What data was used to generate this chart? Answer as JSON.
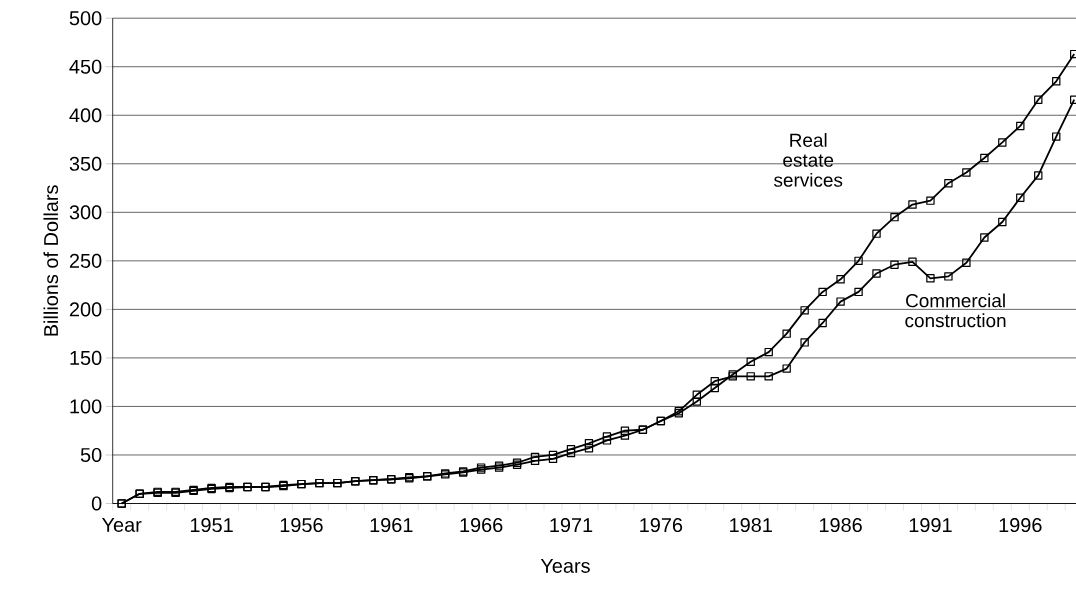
{
  "chart_data": {
    "type": "line",
    "xlabel": "Years",
    "ylabel": "Billions of Dollars",
    "categories": [
      "Year",
      null,
      null,
      null,
      null,
      "1951",
      null,
      null,
      null,
      null,
      "1956",
      null,
      null,
      null,
      null,
      "1961",
      null,
      null,
      null,
      null,
      "1966",
      null,
      null,
      null,
      null,
      "1971",
      null,
      null,
      null,
      null,
      "1976",
      null,
      null,
      null,
      null,
      "1981",
      null,
      null,
      null,
      null,
      "1986",
      null,
      null,
      null,
      null,
      "1991",
      null,
      null,
      null,
      null,
      "1996",
      null,
      null,
      null
    ],
    "series": [
      {
        "name": "Real estate services",
        "color": "#000000",
        "values": [
          0,
          10,
          11,
          11,
          13,
          15,
          16,
          17,
          17,
          18,
          20,
          21,
          21,
          23,
          24,
          25,
          26,
          28,
          30,
          32,
          35,
          37,
          40,
          44,
          46,
          52,
          57,
          65,
          70,
          76,
          85,
          93,
          105,
          119,
          133,
          146,
          156,
          175,
          199,
          218,
          231,
          250,
          278,
          295,
          308,
          312,
          330,
          341,
          356,
          372,
          389,
          416,
          435,
          463
        ]
      },
      {
        "name": "Commercial construction",
        "color": "#000000",
        "values": [
          0,
          10,
          12,
          12,
          14,
          16,
          17,
          17,
          17,
          19,
          20,
          21,
          21,
          23,
          24,
          25,
          27,
          28,
          31,
          33,
          37,
          39,
          42,
          48,
          50,
          56,
          62,
          69,
          75,
          76,
          85,
          95,
          112,
          126,
          131,
          131,
          131,
          139,
          166,
          186,
          208,
          218,
          237,
          246,
          249,
          232,
          234,
          248,
          274,
          290,
          315,
          338,
          378,
          416
        ]
      }
    ],
    "ylim": [
      0,
      500
    ],
    "yticks": [
      0,
      50,
      100,
      150,
      200,
      250,
      300,
      350,
      400,
      450,
      500
    ],
    "grid": "y",
    "marker": "square",
    "line_style": "solid"
  }
}
